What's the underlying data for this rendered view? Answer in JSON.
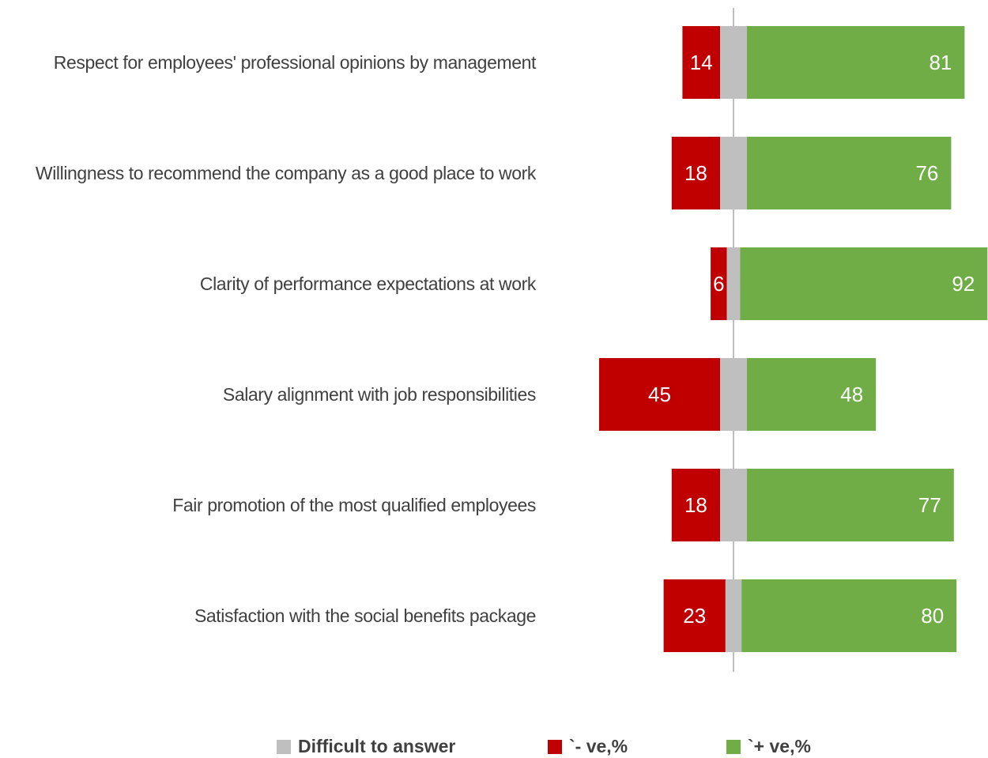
{
  "chart_data": {
    "type": "diverging-bar",
    "categories": [
      "Respect for employees' professional opinions by management",
      "Willingness to recommend the company as a good place to work",
      "Clarity of performance expectations at work",
      "Salary alignment with job responsibilities",
      "Fair promotion of the most qualified employees",
      "Satisfaction with the social benefits package"
    ],
    "series": [
      {
        "name": "Difficult to answer",
        "color": "#bfbfbf",
        "values": [
          10,
          10,
          5,
          10,
          10,
          6
        ]
      },
      {
        "name": "`- ve,%",
        "color": "#c00000",
        "values": [
          14,
          18,
          6,
          45,
          18,
          23
        ]
      },
      {
        "name": "`+ ve,%",
        "color": "#70ad47",
        "values": [
          81,
          76,
          92,
          48,
          77,
          80
        ]
      }
    ]
  }
}
